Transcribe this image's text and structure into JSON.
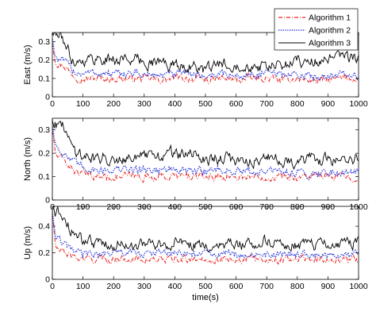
{
  "chart_data": [
    {
      "type": "line",
      "ylabel": "East (m/s)",
      "xlim": [
        0,
        1000
      ],
      "ylim": [
        0,
        0.35
      ],
      "xticks": [
        "0",
        "100",
        "200",
        "300",
        "400",
        "500",
        "600",
        "700",
        "800",
        "900",
        "1000"
      ],
      "yticks": [
        "0",
        "0.1",
        "0.2",
        "0.3"
      ],
      "yticks_values": [
        0,
        0.1,
        0.2,
        0.3
      ],
      "series": [
        {
          "name": "Algorithm 1",
          "color": "#e8231f",
          "style": "dashdot",
          "x": [
            0,
            10,
            20,
            40,
            60,
            80,
            100,
            150,
            200,
            250,
            300,
            350,
            400,
            450,
            500,
            550,
            600,
            650,
            700,
            750,
            800,
            850,
            900,
            950,
            1000
          ],
          "values": [
            0.3,
            0.2,
            0.18,
            0.17,
            0.13,
            0.11,
            0.1,
            0.1,
            0.1,
            0.1,
            0.1,
            0.09,
            0.1,
            0.1,
            0.09,
            0.1,
            0.09,
            0.1,
            0.1,
            0.09,
            0.1,
            0.09,
            0.09,
            0.1,
            0.1
          ]
        },
        {
          "name": "Algorithm 2",
          "color": "#2030d8",
          "style": "dotted",
          "x": [
            0,
            10,
            20,
            40,
            60,
            80,
            100,
            150,
            200,
            250,
            300,
            350,
            400,
            450,
            500,
            550,
            600,
            650,
            700,
            750,
            800,
            850,
            900,
            950,
            1000
          ],
          "values": [
            0.32,
            0.22,
            0.2,
            0.19,
            0.16,
            0.13,
            0.13,
            0.13,
            0.12,
            0.13,
            0.12,
            0.12,
            0.12,
            0.13,
            0.11,
            0.13,
            0.11,
            0.12,
            0.13,
            0.12,
            0.12,
            0.11,
            0.12,
            0.12,
            0.11
          ]
        },
        {
          "name": "Algorithm 3",
          "color": "#000000",
          "style": "solid",
          "x": [
            0,
            10,
            20,
            40,
            60,
            80,
            100,
            150,
            200,
            250,
            300,
            350,
            400,
            450,
            500,
            550,
            600,
            650,
            700,
            750,
            800,
            850,
            900,
            950,
            1000
          ],
          "values": [
            0.36,
            0.33,
            0.34,
            0.3,
            0.22,
            0.19,
            0.2,
            0.21,
            0.2,
            0.21,
            0.19,
            0.19,
            0.17,
            0.17,
            0.14,
            0.18,
            0.18,
            0.17,
            0.16,
            0.17,
            0.2,
            0.19,
            0.2,
            0.22,
            0.21
          ]
        }
      ]
    },
    {
      "type": "line",
      "ylabel": "North (m/s)",
      "xlim": [
        0,
        1000
      ],
      "ylim": [
        0,
        0.35
      ],
      "xticks": [
        "0",
        "100",
        "200",
        "300",
        "400",
        "500",
        "600",
        "700",
        "800",
        "900",
        "1000"
      ],
      "yticks": [
        "0",
        "0.1",
        "0.2",
        "0.3"
      ],
      "yticks_values": [
        0,
        0.1,
        0.2,
        0.3
      ],
      "series": [
        {
          "name": "Algorithm 1",
          "color": "#e8231f",
          "style": "dashdot",
          "x": [
            0,
            10,
            20,
            40,
            60,
            80,
            100,
            150,
            200,
            250,
            300,
            350,
            400,
            450,
            500,
            550,
            600,
            650,
            700,
            750,
            800,
            850,
            900,
            950,
            1000
          ],
          "values": [
            0.3,
            0.2,
            0.18,
            0.17,
            0.14,
            0.12,
            0.11,
            0.1,
            0.1,
            0.1,
            0.1,
            0.1,
            0.1,
            0.1,
            0.1,
            0.1,
            0.1,
            0.1,
            0.1,
            0.1,
            0.1,
            0.1,
            0.1,
            0.1,
            0.1
          ]
        },
        {
          "name": "Algorithm 2",
          "color": "#2030d8",
          "style": "dotted",
          "x": [
            0,
            10,
            20,
            40,
            60,
            80,
            100,
            150,
            200,
            250,
            300,
            350,
            400,
            450,
            500,
            550,
            600,
            650,
            700,
            750,
            800,
            850,
            900,
            950,
            1000
          ],
          "values": [
            0.32,
            0.24,
            0.22,
            0.2,
            0.17,
            0.15,
            0.14,
            0.13,
            0.13,
            0.13,
            0.13,
            0.13,
            0.13,
            0.12,
            0.13,
            0.13,
            0.12,
            0.12,
            0.12,
            0.12,
            0.12,
            0.11,
            0.12,
            0.12,
            0.12
          ]
        },
        {
          "name": "Algorithm 3",
          "color": "#000000",
          "style": "solid",
          "x": [
            0,
            10,
            20,
            40,
            60,
            80,
            100,
            150,
            200,
            250,
            300,
            350,
            400,
            450,
            500,
            550,
            600,
            650,
            700,
            750,
            800,
            850,
            900,
            950,
            1000
          ],
          "values": [
            0.35,
            0.33,
            0.32,
            0.31,
            0.24,
            0.21,
            0.19,
            0.18,
            0.18,
            0.19,
            0.18,
            0.19,
            0.2,
            0.19,
            0.18,
            0.18,
            0.17,
            0.17,
            0.18,
            0.17,
            0.17,
            0.17,
            0.17,
            0.18,
            0.17
          ]
        }
      ]
    },
    {
      "type": "line",
      "ylabel": "Up (m/s)",
      "xlabel": "time(s)",
      "xlim": [
        0,
        1000
      ],
      "ylim": [
        0,
        0.55
      ],
      "xticks": [
        "0",
        "100",
        "200",
        "300",
        "400",
        "500",
        "600",
        "700",
        "800",
        "900",
        "1000"
      ],
      "yticks": [
        "0",
        "0.2",
        "0.4"
      ],
      "yticks_values": [
        0,
        0.2,
        0.4
      ],
      "series": [
        {
          "name": "Algorithm 1",
          "color": "#e8231f",
          "style": "dashdot",
          "x": [
            0,
            10,
            20,
            40,
            60,
            80,
            100,
            150,
            200,
            250,
            300,
            350,
            400,
            450,
            500,
            550,
            600,
            650,
            700,
            750,
            800,
            850,
            900,
            950,
            1000
          ],
          "values": [
            0.5,
            0.25,
            0.22,
            0.2,
            0.18,
            0.16,
            0.15,
            0.15,
            0.15,
            0.16,
            0.15,
            0.15,
            0.15,
            0.15,
            0.15,
            0.15,
            0.15,
            0.15,
            0.15,
            0.15,
            0.16,
            0.15,
            0.15,
            0.15,
            0.15
          ]
        },
        {
          "name": "Algorithm 2",
          "color": "#2030d8",
          "style": "dotted",
          "x": [
            0,
            10,
            20,
            40,
            60,
            80,
            100,
            150,
            200,
            250,
            300,
            350,
            400,
            450,
            500,
            550,
            600,
            650,
            700,
            750,
            800,
            850,
            900,
            950,
            1000
          ],
          "values": [
            0.52,
            0.32,
            0.3,
            0.26,
            0.22,
            0.2,
            0.19,
            0.19,
            0.2,
            0.2,
            0.19,
            0.2,
            0.19,
            0.19,
            0.19,
            0.19,
            0.19,
            0.19,
            0.19,
            0.18,
            0.19,
            0.19,
            0.18,
            0.18,
            0.18
          ]
        },
        {
          "name": "Algorithm 3",
          "color": "#000000",
          "style": "solid",
          "x": [
            0,
            10,
            20,
            40,
            60,
            80,
            100,
            150,
            200,
            250,
            300,
            350,
            400,
            450,
            500,
            550,
            600,
            650,
            700,
            750,
            800,
            850,
            900,
            950,
            1000
          ],
          "values": [
            0.55,
            0.5,
            0.5,
            0.46,
            0.38,
            0.32,
            0.28,
            0.27,
            0.27,
            0.27,
            0.26,
            0.26,
            0.27,
            0.26,
            0.25,
            0.27,
            0.25,
            0.27,
            0.3,
            0.27,
            0.25,
            0.25,
            0.26,
            0.27,
            0.27
          ]
        }
      ]
    }
  ],
  "legend": [
    {
      "name": "Algorithm 1",
      "color": "#e8231f",
      "style": "dashdot"
    },
    {
      "name": "Algorithm 2",
      "color": "#2030d8",
      "style": "dotted"
    },
    {
      "name": "Algorithm 3",
      "color": "#000000",
      "style": "solid"
    }
  ],
  "legend_position": "top-right of first panel"
}
